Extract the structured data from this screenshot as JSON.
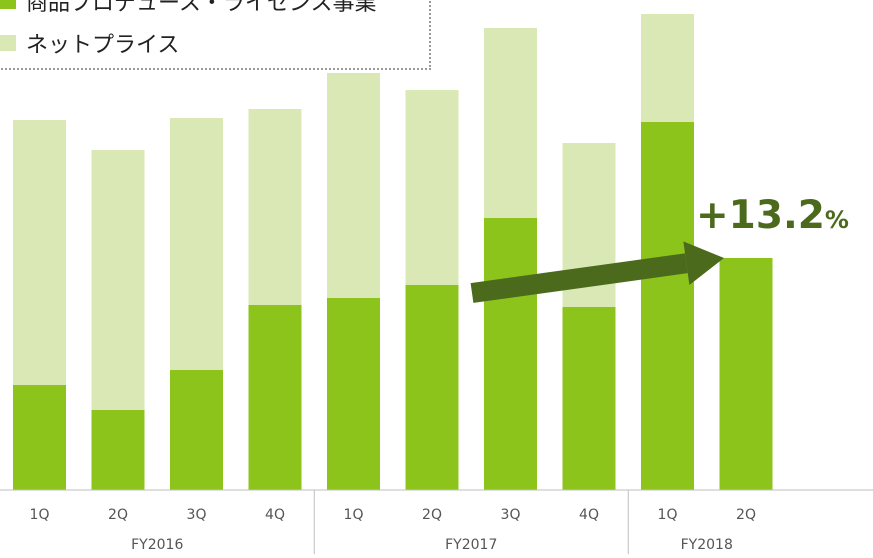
{
  "colors": {
    "product": "#8cc41c",
    "netprice": "#d9e8b4",
    "arrow": "#4b6a1c",
    "axis": "#bfbfbf"
  },
  "legend": {
    "items": [
      {
        "label": "商品プロデュース・ライセンス事業",
        "color": "#8cc41c"
      },
      {
        "label": "ネットプライス",
        "color": "#d9e8b4"
      }
    ]
  },
  "annotation": {
    "growth_value": "+13.2",
    "growth_unit": "%"
  },
  "chart_data": {
    "type": "bar",
    "stacked": true,
    "categories": [
      "1Q",
      "2Q",
      "3Q",
      "4Q",
      "1Q",
      "2Q",
      "3Q",
      "4Q",
      "1Q",
      "2Q"
    ],
    "groups": [
      {
        "label": "FY2016",
        "count": 4
      },
      {
        "label": "FY2017",
        "count": 4
      },
      {
        "label": "FY2018",
        "count": 2
      }
    ],
    "series": [
      {
        "name": "商品プロデュース・ライセンス事業",
        "values": [
          105,
          80,
          120,
          185,
          192,
          205,
          272,
          183,
          368,
          232
        ]
      },
      {
        "name": "ネットプライス",
        "values": [
          265,
          260,
          252,
          196,
          225,
          195,
          190,
          164,
          108,
          null
        ]
      }
    ],
    "ylim": [
      0,
      476
    ],
    "annotation": {
      "text": "+13.2%",
      "from_category_index": 5,
      "to_category_index": 9
    }
  }
}
